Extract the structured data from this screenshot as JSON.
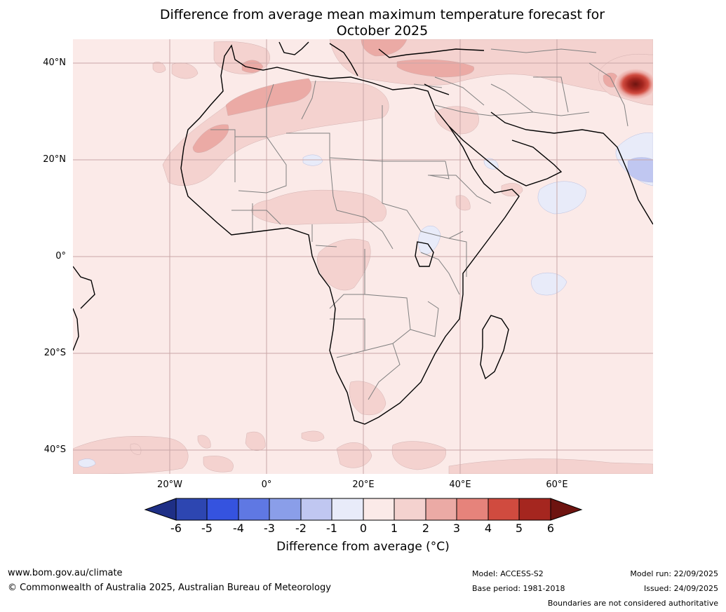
{
  "title": {
    "line1": "Difference from average mean maximum temperature forecast for",
    "line2": "October 2025"
  },
  "map": {
    "lat_labels": [
      "40°N",
      "20°N",
      "0°",
      "20°S",
      "40°S"
    ],
    "lon_labels": [
      "20°W",
      "0°",
      "20°E",
      "40°E",
      "60°E"
    ],
    "colors": {
      "plus_0_1": "#fbeae8",
      "plus_1_2": "#f4d2cf",
      "plus_2_3": "#ebaaa5",
      "plus_4_5": "#d04b3f",
      "plus_5_6": "#a5261f",
      "max": "#6e1410",
      "minus_0_1": "#e8ebf9",
      "minus_1_2": "#c0c7f1",
      "gridline": "#c9a7a7",
      "coast": "#000000",
      "border": "#808080"
    }
  },
  "colorbar": {
    "ticks": [
      "-6",
      "-5",
      "-4",
      "-3",
      "-2",
      "-1",
      "0",
      "1",
      "2",
      "3",
      "4",
      "5",
      "6"
    ],
    "colors": [
      "#1e2f86",
      "#2d46b1",
      "#3553df",
      "#5f78e3",
      "#8a9ee9",
      "#c0c7f1",
      "#e8ebf9",
      "#fbeae8",
      "#f4d2cf",
      "#ebaaa5",
      "#e6837b",
      "#d04b3f",
      "#a5261f",
      "#6e1410"
    ],
    "label": "Difference from average (°C)"
  },
  "footer": {
    "website": "www.bom.gov.au/climate",
    "copyright": "© Commonwealth of Australia 2025, Australian Bureau of Meteorology",
    "model": "Model: ACCESS-S2",
    "base_period": "Base period: 1981-2018",
    "model_run": "Model run: 22/09/2025",
    "issued": "Issued: 24/09/2025",
    "disclaimer": "Boundaries are not considered authoritative"
  }
}
